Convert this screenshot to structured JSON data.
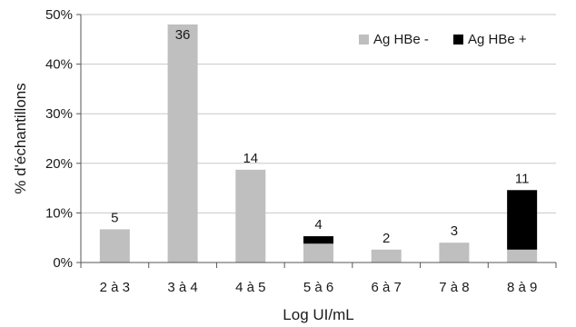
{
  "chart_data": {
    "type": "bar",
    "stacked": true,
    "categories": [
      "2 à 3",
      "3 à 4",
      "4 à 5",
      "5 à 6",
      "6 à 7",
      "7 à 8",
      "8 à 9"
    ],
    "series": [
      {
        "name": "Ag HBe -",
        "color": "#bfbfbf",
        "values": [
          6.7,
          48.0,
          18.7,
          3.8,
          2.6,
          4.0,
          2.6
        ]
      },
      {
        "name": "Ag HBe +",
        "color": "#000000",
        "values": [
          0,
          0,
          0,
          1.5,
          0,
          0,
          12.0
        ]
      }
    ],
    "data_labels": [
      "5",
      "36",
      "14",
      "4",
      "2",
      "3",
      "11"
    ],
    "xlabel": "Log UI/mL",
    "ylabel": "% d'échantillons",
    "ylim": [
      0,
      50
    ],
    "yticks": [
      "0%",
      "10%",
      "20%",
      "30%",
      "40%",
      "50%"
    ],
    "grid": true,
    "legend_position": "top-right"
  }
}
